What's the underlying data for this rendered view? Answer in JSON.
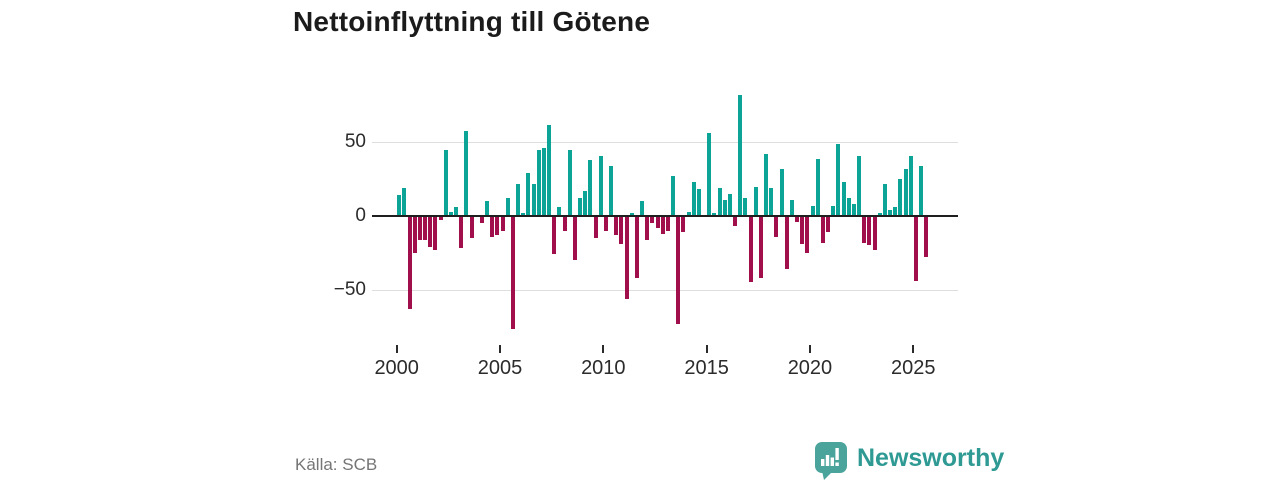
{
  "title": "Nettoinflyttning till Götene",
  "source": "Källa: SCB",
  "brand": {
    "name": "Newsworthy",
    "icon": "bar-chart-speech-bubble-icon",
    "color": "#2e9a93"
  },
  "chart_data": {
    "type": "bar",
    "title": "Nettoinflyttning till Götene",
    "x_start": "2000-Q1",
    "frequency": "quarterly",
    "values": [
      14,
      19,
      -63,
      -25,
      -16,
      -16,
      -21,
      -23,
      -3,
      45,
      3,
      6,
      -22,
      58,
      -15,
      0,
      -5,
      10,
      -14,
      -13,
      -10,
      12,
      -77,
      22,
      2,
      29,
      22,
      45,
      46,
      62,
      -26,
      6,
      -10,
      45,
      -30,
      12,
      17,
      38,
      -15,
      41,
      -10,
      34,
      -13,
      -19,
      -56,
      2,
      -42,
      10,
      -16,
      -5,
      -8,
      -12,
      -10,
      27,
      -73,
      -11,
      3,
      23,
      18,
      0,
      56,
      2,
      19,
      11,
      15,
      -7,
      82,
      12,
      -45,
      20,
      -42,
      42,
      19,
      -14,
      32,
      -36,
      11,
      -4,
      -19,
      -25,
      7,
      39,
      -18,
      -11,
      7,
      49,
      23,
      12,
      8,
      41,
      -18,
      -20,
      -23,
      2,
      22,
      4,
      6,
      25,
      32,
      41,
      -44,
      34,
      -28
    ],
    "x_tick_years": [
      2000,
      2005,
      2010,
      2015,
      2020,
      2025
    ],
    "x_tick_labels": [
      "2000",
      "2005",
      "2010",
      "2015",
      "2020",
      "2025"
    ],
    "y_ticks": [
      50,
      0,
      -50
    ],
    "y_tick_labels": [
      "50",
      "0",
      "−50"
    ],
    "ylim": [
      -80,
      90
    ],
    "grid": "horizontal",
    "legend": "none",
    "colors": {
      "positive": "#0ca496",
      "negative": "#a00f4b"
    }
  }
}
